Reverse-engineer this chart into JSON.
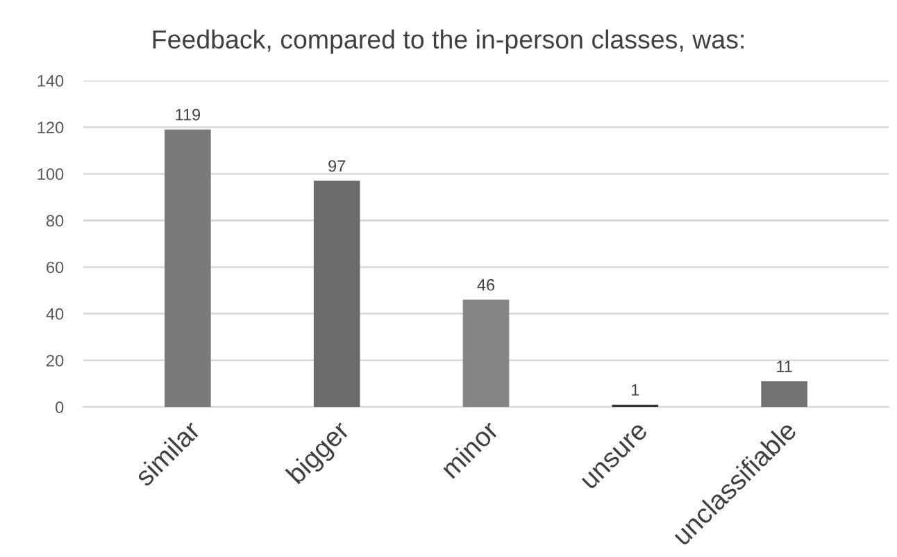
{
  "chart_data": {
    "type": "bar",
    "title": "Feedback, compared to the in-person classes, was:",
    "categories": [
      "similar",
      "bigger",
      "minor",
      "unsure",
      "unclassifiable"
    ],
    "values": [
      119,
      97,
      46,
      1,
      11
    ],
    "colors": [
      "#7a7a7a",
      "#6b6b6b",
      "#858585",
      "#333333",
      "#727272"
    ],
    "ylim": [
      0,
      140
    ],
    "yticks": [
      0,
      20,
      40,
      60,
      80,
      100,
      120,
      140
    ],
    "grid": "y",
    "data_labels": true
  }
}
